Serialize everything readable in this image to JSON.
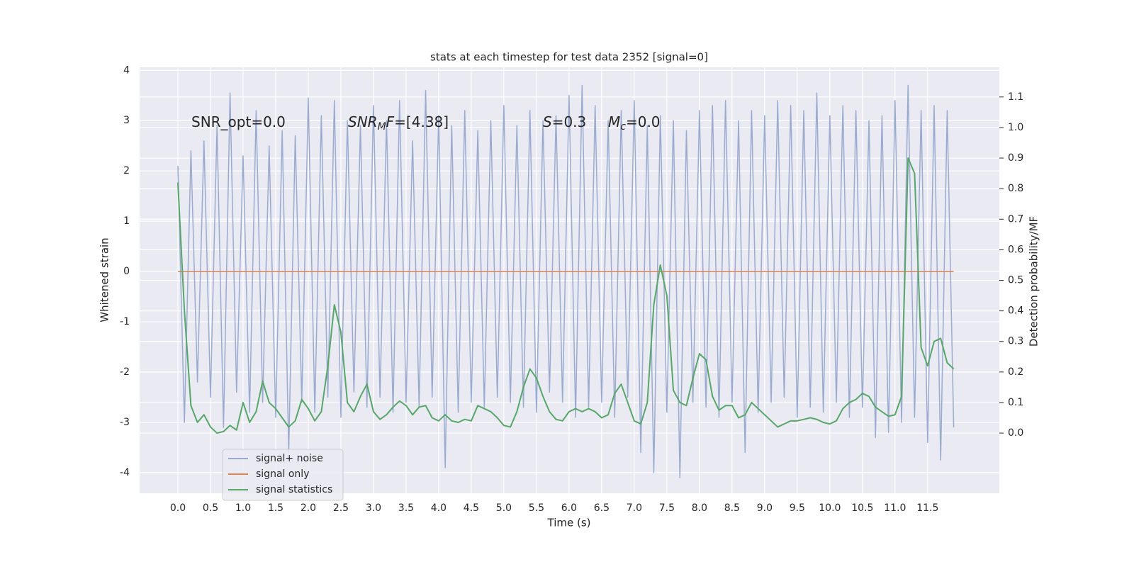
{
  "chart_data": {
    "type": "line",
    "title": "stats at each timestep for test data 2352 [signal=0]",
    "xlabel": "Time (s)",
    "ylabel": "Whitened strain",
    "y2label": "Detection probability/MF",
    "annotations": [
      [
        {
          "t": "SNR_opt=0.0"
        }
      ],
      [
        {
          "t": "SNR",
          "italic": true
        },
        {
          "t": "M",
          "italic": true,
          "sub": true
        },
        {
          "t": "F",
          "italic": true
        },
        {
          "t": "=[4.38]"
        }
      ],
      [
        {
          "t": "S",
          "italic": true
        },
        {
          "t": "=0.3"
        }
      ],
      [
        {
          "t": "M",
          "italic": true
        },
        {
          "t": "c",
          "italic": true,
          "sub": true
        },
        {
          "t": "=0.0"
        }
      ]
    ],
    "x": [
      0.0,
      0.1,
      0.2,
      0.3,
      0.4,
      0.5,
      0.6,
      0.7,
      0.8,
      0.9,
      1.0,
      1.1,
      1.2,
      1.3,
      1.4,
      1.5,
      1.6,
      1.7,
      1.8,
      1.9,
      2.0,
      2.1,
      2.2,
      2.3,
      2.4,
      2.5,
      2.6,
      2.7,
      2.8,
      2.9,
      3.0,
      3.1,
      3.2,
      3.3,
      3.4,
      3.5,
      3.6,
      3.7,
      3.8,
      3.9,
      4.0,
      4.1,
      4.2,
      4.3,
      4.4,
      4.5,
      4.6,
      4.7,
      4.8,
      4.9,
      5.0,
      5.1,
      5.2,
      5.3,
      5.4,
      5.5,
      5.6,
      5.7,
      5.8,
      5.9,
      6.0,
      6.1,
      6.2,
      6.3,
      6.4,
      6.5,
      6.6,
      6.7,
      6.8,
      6.9,
      7.0,
      7.1,
      7.2,
      7.3,
      7.4,
      7.5,
      7.6,
      7.7,
      7.8,
      7.9,
      8.0,
      8.1,
      8.2,
      8.3,
      8.4,
      8.5,
      8.6,
      8.7,
      8.8,
      8.9,
      9.0,
      9.1,
      9.2,
      9.3,
      9.4,
      9.5,
      9.6,
      9.7,
      9.8,
      9.9,
      10.0,
      10.1,
      10.2,
      10.3,
      10.4,
      10.5,
      10.6,
      10.7,
      10.8,
      10.9,
      11.0,
      11.1,
      11.2,
      11.3,
      11.4,
      11.5,
      11.6,
      11.7,
      11.8,
      11.9
    ],
    "series": [
      {
        "name": "signal+ noise",
        "color": "#9aabd0",
        "values": [
          2.1,
          -3.0,
          2.4,
          -2.2,
          2.6,
          -2.5,
          2.9,
          -3.1,
          3.55,
          -2.4,
          2.3,
          -2.8,
          3.2,
          -2.6,
          2.5,
          -2.9,
          2.8,
          -3.6,
          2.7,
          -2.6,
          3.45,
          -2.8,
          3.1,
          -2.5,
          3.4,
          -2.9,
          3.0,
          -2.4,
          2.9,
          -2.7,
          3.3,
          -2.5,
          3.0,
          -2.8,
          3.4,
          -2.6,
          2.6,
          -2.7,
          3.6,
          -2.5,
          3.1,
          -3.9,
          2.9,
          -2.8,
          3.2,
          -2.6,
          2.8,
          -2.7,
          3.0,
          -2.5,
          3.3,
          -2.6,
          2.9,
          -2.7,
          3.2,
          -2.8,
          3.0,
          -2.4,
          3.1,
          -2.6,
          3.5,
          -2.9,
          3.7,
          -2.7,
          3.3,
          -2.6,
          3.0,
          -2.9,
          3.2,
          -2.5,
          3.4,
          -3.6,
          2.9,
          -4.0,
          3.1,
          -2.8,
          3.0,
          -4.1,
          2.8,
          -2.6,
          3.2,
          -2.7,
          3.3,
          -2.9,
          3.4,
          -2.6,
          3.0,
          -3.6,
          3.2,
          -2.8,
          3.1,
          -2.6,
          3.4,
          -2.5,
          3.3,
          -2.9,
          3.2,
          -2.7,
          3.55,
          -2.8,
          3.1,
          -2.6,
          3.3,
          -2.9,
          3.2,
          -2.7,
          3.0,
          -3.3,
          3.1,
          -3.2,
          3.4,
          -3.0,
          3.7,
          -2.9,
          3.2,
          -3.4,
          3.3,
          -3.75,
          3.2,
          -3.1
        ]
      },
      {
        "name": "signal only",
        "color": "#dd8452",
        "values": [
          0,
          0,
          0,
          0,
          0,
          0,
          0,
          0,
          0,
          0,
          0,
          0,
          0,
          0,
          0,
          0,
          0,
          0,
          0,
          0,
          0,
          0,
          0,
          0,
          0,
          0,
          0,
          0,
          0,
          0,
          0,
          0,
          0,
          0,
          0,
          0,
          0,
          0,
          0,
          0,
          0,
          0,
          0,
          0,
          0,
          0,
          0,
          0,
          0,
          0,
          0,
          0,
          0,
          0,
          0,
          0,
          0,
          0,
          0,
          0,
          0,
          0,
          0,
          0,
          0,
          0,
          0,
          0,
          0,
          0,
          0,
          0,
          0,
          0,
          0,
          0,
          0,
          0,
          0,
          0,
          0,
          0,
          0,
          0,
          0,
          0,
          0,
          0,
          0,
          0,
          0,
          0,
          0,
          0,
          0,
          0,
          0,
          0,
          0,
          0,
          0,
          0,
          0,
          0,
          0,
          0,
          0,
          0,
          0,
          0,
          0,
          0,
          0,
          0,
          0,
          0,
          0,
          0,
          0,
          0
        ]
      },
      {
        "name": "signal statistics",
        "color": "#55a868",
        "axis": "y2",
        "values": [
          0.82,
          0.4,
          0.09,
          0.035,
          0.06,
          0.02,
          0.0,
          0.005,
          0.025,
          0.01,
          0.1,
          0.035,
          0.07,
          0.17,
          0.1,
          0.08,
          0.05,
          0.02,
          0.04,
          0.11,
          0.08,
          0.04,
          0.07,
          0.22,
          0.42,
          0.33,
          0.1,
          0.07,
          0.12,
          0.16,
          0.07,
          0.045,
          0.06,
          0.085,
          0.105,
          0.09,
          0.06,
          0.085,
          0.09,
          0.05,
          0.04,
          0.06,
          0.04,
          0.035,
          0.045,
          0.04,
          0.09,
          0.08,
          0.07,
          0.05,
          0.025,
          0.02,
          0.07,
          0.15,
          0.21,
          0.18,
          0.12,
          0.07,
          0.045,
          0.04,
          0.07,
          0.08,
          0.07,
          0.08,
          0.07,
          0.05,
          0.06,
          0.13,
          0.16,
          0.1,
          0.04,
          0.03,
          0.1,
          0.42,
          0.55,
          0.45,
          0.14,
          0.1,
          0.09,
          0.18,
          0.26,
          0.24,
          0.12,
          0.075,
          0.09,
          0.09,
          0.05,
          0.06,
          0.1,
          0.08,
          0.06,
          0.04,
          0.02,
          0.03,
          0.04,
          0.04,
          0.045,
          0.05,
          0.045,
          0.035,
          0.03,
          0.04,
          0.08,
          0.1,
          0.11,
          0.13,
          0.12,
          0.085,
          0.07,
          0.055,
          0.06,
          0.12,
          0.9,
          0.85,
          0.28,
          0.22,
          0.3,
          0.31,
          0.23,
          0.21
        ]
      }
    ],
    "xlim": [
      -0.587,
      12.6
    ],
    "xticks": [
      {
        "value": 0,
        "label": "0.0"
      },
      0.5,
      {
        "value": 1,
        "label": "1.0"
      },
      1.5,
      {
        "value": 2,
        "label": "2.0"
      },
      2.5,
      {
        "value": 3,
        "label": "3.0"
      },
      3.5,
      {
        "value": 4,
        "label": "4.0"
      },
      4.5,
      {
        "value": 5,
        "label": "5.0"
      },
      5.5,
      {
        "value": 6,
        "label": "6.0"
      },
      6.5,
      {
        "value": 7,
        "label": "7.0"
      },
      7.5,
      {
        "value": 8,
        "label": "8.0"
      },
      8.5,
      {
        "value": 9,
        "label": "9.0"
      },
      9.5,
      {
        "value": 10,
        "label": "10.0"
      },
      10.5,
      {
        "value": 11,
        "label": "11.0"
      },
      11.5
    ],
    "ylim": [
      -4.41,
      4.06
    ],
    "yticks": [
      -4,
      -3,
      -2,
      -1,
      0,
      1,
      2,
      3,
      4
    ],
    "y2lim": [
      -0.197,
      1.197
    ],
    "y2ticks": [
      {
        "value": 0,
        "label": "0.0"
      },
      0.1,
      0.2,
      0.3,
      0.4,
      0.5,
      0.6,
      0.7,
      0.8,
      0.9,
      {
        "value": 1,
        "label": "1.0"
      },
      1.1
    ],
    "grid": true,
    "legend": "lower left"
  }
}
